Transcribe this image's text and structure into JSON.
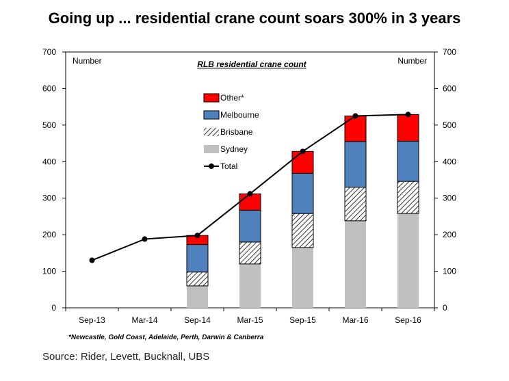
{
  "headline": "Going up ... residential crane count soars 300% in 3 years",
  "source": "Source:  Rider, Levett, Bucknall, UBS",
  "chart_data": {
    "type": "bar",
    "stacked": true,
    "title": "RLB residential crane count",
    "ylabel_left": "Number",
    "ylabel_right": "Number",
    "categories": [
      "Sep-13",
      "Mar-14",
      "Sep-14",
      "Mar-15",
      "Sep-15",
      "Mar-16",
      "Sep-16"
    ],
    "ylim": [
      0,
      700
    ],
    "yticks": [
      0,
      100,
      200,
      300,
      400,
      500,
      600,
      700
    ],
    "series": [
      {
        "name": "Sydney",
        "kind": "bar",
        "color": "#c0c0c0",
        "pattern": "solid",
        "values": [
          null,
          null,
          60,
          120,
          165,
          238,
          258
        ]
      },
      {
        "name": "Brisbane",
        "kind": "bar",
        "color": "#ffffff",
        "pattern": "hatch",
        "values": [
          null,
          null,
          38,
          60,
          93,
          92,
          88
        ]
      },
      {
        "name": "Melbourne",
        "kind": "bar",
        "color": "#4f81bd",
        "pattern": "solid",
        "values": [
          null,
          null,
          75,
          87,
          110,
          125,
          110
        ]
      },
      {
        "name": "Other*",
        "kind": "bar",
        "color": "#ff0000",
        "pattern": "solid",
        "values": [
          null,
          null,
          25,
          45,
          60,
          70,
          73
        ]
      },
      {
        "name": "Total",
        "kind": "line",
        "color": "#000000",
        "values": [
          130,
          188,
          198,
          312,
          428,
          525,
          529
        ]
      }
    ],
    "legend_order": [
      "Other*",
      "Melbourne",
      "Brisbane",
      "Sydney",
      "Total"
    ],
    "legend_position": "top-center",
    "footnote": "*Newcastle, Gold Coast, Adelaide, Perth, Darwin & Canberra",
    "grid": false
  }
}
